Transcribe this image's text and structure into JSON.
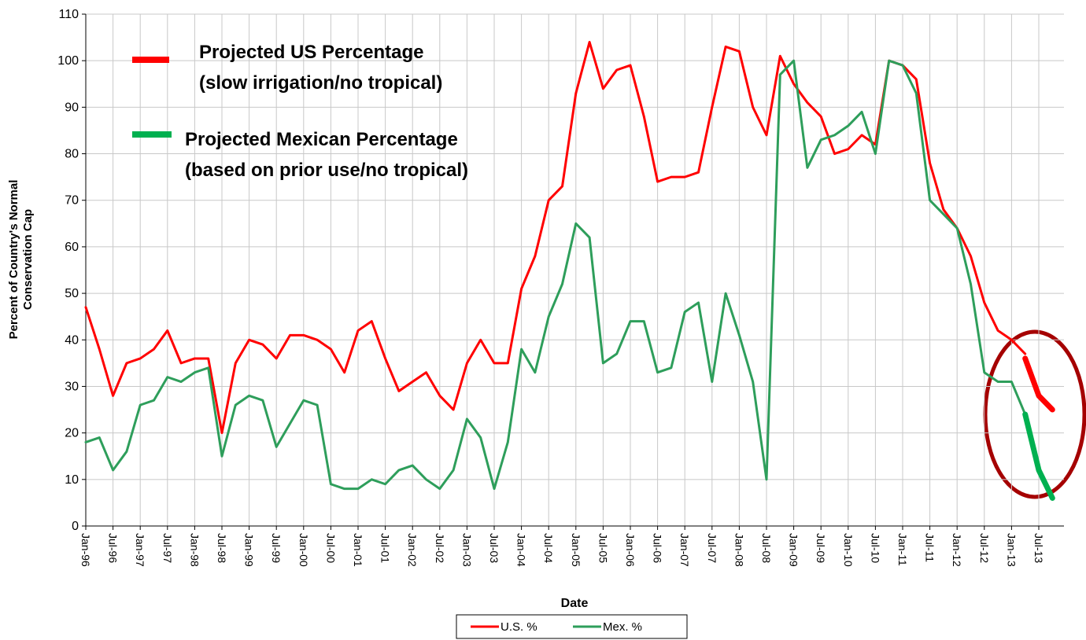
{
  "chart_data": {
    "type": "line",
    "xlabel": "Date",
    "ylabel": [
      "Percent of Country's Normal",
      "Conservation Cap"
    ],
    "categories": [
      "Jan-96",
      null,
      "Jul-96",
      null,
      "Jan-97",
      null,
      "Jul-97",
      null,
      "Jan-98",
      null,
      "Jul-98",
      null,
      "Jan-99",
      null,
      "Jul-99",
      null,
      "Jan-00",
      null,
      "Jul-00",
      null,
      "Jan-01",
      null,
      "Jul-01",
      null,
      "Jan-02",
      null,
      "Jul-02",
      null,
      "Jan-03",
      null,
      "Jul-03",
      null,
      "Jan-04",
      null,
      "Jul-04",
      null,
      "Jan-05",
      null,
      "Jul-05",
      null,
      "Jan-06",
      null,
      "Jul-06",
      null,
      "Jan-07",
      null,
      "Jul-07",
      null,
      "Jan-08",
      null,
      "Jul-08",
      null,
      "Jan-09",
      null,
      "Jul-09",
      null,
      "Jan-10",
      null,
      "Jul-10",
      null,
      "Jan-11",
      null,
      "Jul-11",
      null,
      "Jan-12",
      null,
      "Jul-12",
      null,
      "Jan-13",
      null,
      "Jul-13",
      null
    ],
    "series": [
      {
        "name": "U.S. %",
        "color": "#ff0000",
        "values": [
          47,
          38,
          28,
          35,
          36,
          38,
          42,
          35,
          36,
          36,
          20,
          35,
          40,
          39,
          36,
          41,
          41,
          40,
          38,
          33,
          42,
          44,
          36,
          29,
          31,
          33,
          28,
          25,
          35,
          40,
          35,
          35,
          51,
          58,
          70,
          73,
          93,
          104,
          94,
          98,
          99,
          88,
          74,
          75,
          75,
          76,
          90,
          103,
          102,
          90,
          84,
          101,
          95,
          91,
          88,
          80,
          81,
          84,
          82,
          100,
          99,
          96,
          78,
          68,
          64,
          58,
          48,
          42,
          40,
          37,
          null,
          null
        ]
      },
      {
        "name": "Mex. %",
        "color": "#2e9e5b",
        "values": [
          18,
          19,
          12,
          16,
          26,
          27,
          32,
          31,
          33,
          34,
          15,
          26,
          28,
          27,
          17,
          22,
          27,
          26,
          9,
          8,
          8,
          10,
          9,
          12,
          13,
          10,
          8,
          12,
          23,
          19,
          8,
          18,
          38,
          33,
          45,
          52,
          65,
          62,
          35,
          37,
          44,
          44,
          33,
          34,
          46,
          48,
          31,
          50,
          41,
          31,
          10,
          97,
          100,
          77,
          83,
          84,
          86,
          89,
          80,
          100,
          99,
          93,
          70,
          67,
          64,
          52,
          33,
          31,
          31,
          24,
          null,
          null
        ]
      }
    ],
    "projections": [
      {
        "name": "Projected US Percentage",
        "note": "(slow irrigation/no tropical)",
        "color": "#ff0000",
        "values": [
          null,
          null,
          null,
          null,
          null,
          null,
          null,
          null,
          null,
          null,
          null,
          null,
          null,
          null,
          null,
          null,
          null,
          null,
          null,
          null,
          null,
          null,
          null,
          null,
          null,
          null,
          null,
          null,
          null,
          null,
          null,
          null,
          null,
          null,
          null,
          null,
          null,
          null,
          null,
          null,
          null,
          null,
          null,
          null,
          null,
          null,
          null,
          null,
          null,
          null,
          null,
          null,
          null,
          null,
          null,
          null,
          null,
          null,
          null,
          null,
          null,
          null,
          null,
          null,
          null,
          null,
          null,
          null,
          null,
          36,
          28,
          25
        ]
      },
      {
        "name": "Projected Mexican Percentage",
        "note": "(based on prior use/no tropical)",
        "color": "#00b050",
        "values": [
          null,
          null,
          null,
          null,
          null,
          null,
          null,
          null,
          null,
          null,
          null,
          null,
          null,
          null,
          null,
          null,
          null,
          null,
          null,
          null,
          null,
          null,
          null,
          null,
          null,
          null,
          null,
          null,
          null,
          null,
          null,
          null,
          null,
          null,
          null,
          null,
          null,
          null,
          null,
          null,
          null,
          null,
          null,
          null,
          null,
          null,
          null,
          null,
          null,
          null,
          null,
          null,
          null,
          null,
          null,
          null,
          null,
          null,
          null,
          null,
          null,
          null,
          null,
          null,
          null,
          null,
          null,
          null,
          null,
          24,
          12,
          6
        ]
      }
    ],
    "ylim": [
      0,
      110
    ],
    "yticks": [
      0,
      10,
      20,
      30,
      40,
      50,
      60,
      70,
      80,
      90,
      100,
      110
    ],
    "grid": true
  }
}
